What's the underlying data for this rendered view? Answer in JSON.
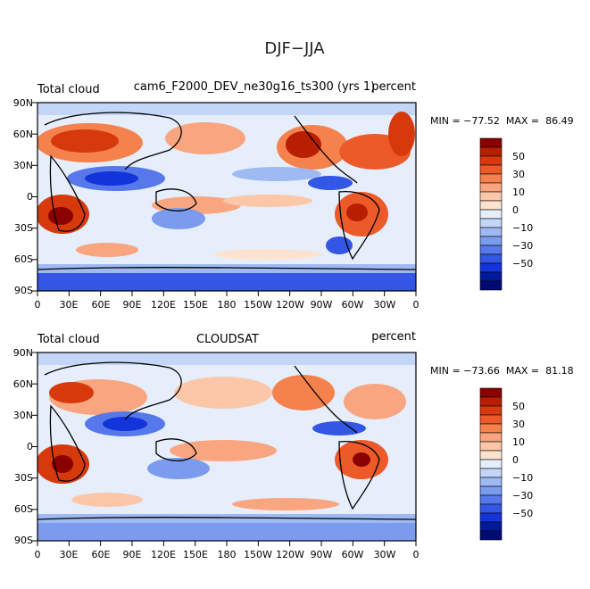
{
  "figure": {
    "title": "DJF−JJA"
  },
  "panels": [
    {
      "left_label": "Total cloud",
      "center_label": "cam6_F2000_DEV_ne30g16_ts300 (yrs 1)",
      "right_label": "percent",
      "stats": "MIN = −77.52  MAX =  86.49"
    },
    {
      "left_label": "Total cloud",
      "center_label": "CLOUDSAT",
      "right_label": "percent",
      "stats": "MIN = −73.66  MAX =  81.18"
    }
  ],
  "axes": {
    "lat_ticks": [
      "90N",
      "60N",
      "30N",
      "0",
      "30S",
      "60S",
      "90S"
    ],
    "lon_ticks": [
      "0",
      "30E",
      "60E",
      "90E",
      "120E",
      "150E",
      "180",
      "150W",
      "120W",
      "90W",
      "60W",
      "30W",
      "0"
    ]
  },
  "colorbar": {
    "labels": [
      "50",
      "30",
      "10",
      "0",
      "−10",
      "−30",
      "−50"
    ],
    "colors": [
      "#8b0000",
      "#b81e00",
      "#d63a0c",
      "#ec5a2a",
      "#f5814c",
      "#f9a580",
      "#fbc7a8",
      "#fde3cf",
      "#e6eefb",
      "#c4d6f7",
      "#9fbaf2",
      "#7a9bee",
      "#5678ea",
      "#3356e4",
      "#1234d8",
      "#001a9c",
      "#000a73"
    ]
  }
}
